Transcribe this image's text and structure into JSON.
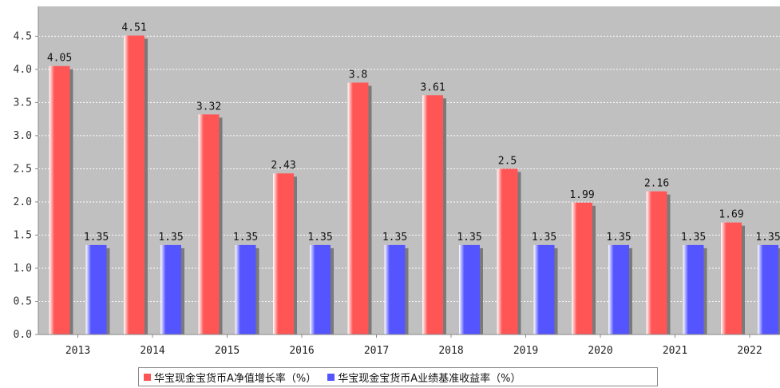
{
  "chart_data": {
    "type": "bar",
    "categories": [
      "2013",
      "2014",
      "2015",
      "2016",
      "2017",
      "2018",
      "2019",
      "2020",
      "2021",
      "2022"
    ],
    "series": [
      {
        "name": "华宝现金宝货币A净值增长率（%）",
        "color": "#ff5555",
        "values": [
          4.05,
          4.51,
          3.32,
          2.43,
          3.8,
          3.61,
          2.5,
          1.99,
          2.16,
          1.69
        ]
      },
      {
        "name": "华宝现金宝货币A业绩基准收益率（%）",
        "color": "#5555ff",
        "values": [
          1.35,
          1.35,
          1.35,
          1.35,
          1.35,
          1.35,
          1.35,
          1.35,
          1.35,
          1.35
        ]
      }
    ],
    "data_labels": [
      [
        "4.05",
        "4.51",
        "3.32",
        "2.43",
        "3.8",
        "3.61",
        "2.5",
        "1.99",
        "2.16",
        "1.69"
      ],
      [
        "1.35",
        "1.35",
        "1.35",
        "1.35",
        "1.35",
        "1.35",
        "1.35",
        "1.35",
        "1.35",
        "1.35"
      ]
    ],
    "yticks": [
      "0.0",
      "0.5",
      "1.0",
      "1.5",
      "2.0",
      "2.5",
      "3.0",
      "3.5",
      "4.0",
      "4.5"
    ],
    "ylim": [
      0,
      4.95
    ],
    "title": "",
    "xlabel": "",
    "ylabel": "",
    "grid": true,
    "legend_position": "bottom",
    "plot_background": "#c0c0c0"
  }
}
